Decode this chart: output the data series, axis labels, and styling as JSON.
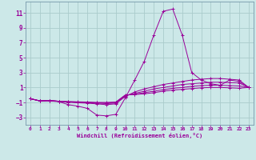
{
  "xlabel": "Windchill (Refroidissement éolien,°C)",
  "background_color": "#cce8e8",
  "grid_color": "#aacccc",
  "line_color": "#990099",
  "spine_color": "#7799aa",
  "xlim": [
    -0.5,
    23.5
  ],
  "ylim": [
    -4.0,
    12.5
  ],
  "xticks": [
    0,
    1,
    2,
    3,
    4,
    5,
    6,
    7,
    8,
    9,
    10,
    11,
    12,
    13,
    14,
    15,
    16,
    17,
    18,
    19,
    20,
    21,
    22,
    23
  ],
  "yticks": [
    -3,
    -1,
    1,
    3,
    5,
    7,
    9,
    11
  ],
  "series": [
    {
      "x": [
        0,
        1,
        2,
        3,
        4,
        5,
        6,
        7,
        8,
        9,
        10,
        11,
        12,
        13,
        14,
        15,
        16,
        17,
        18,
        19,
        20,
        21,
        22,
        23
      ],
      "y": [
        -0.5,
        -0.8,
        -0.8,
        -0.9,
        -1.3,
        -1.5,
        -1.8,
        -2.7,
        -2.8,
        -2.6,
        -0.4,
        2.0,
        4.5,
        8.0,
        11.2,
        11.5,
        8.0,
        3.0,
        2.0,
        1.5,
        1.3,
        2.0,
        1.8,
        1.0
      ]
    },
    {
      "x": [
        0,
        1,
        2,
        3,
        4,
        5,
        6,
        7,
        8,
        9,
        10,
        11,
        12,
        13,
        14,
        15,
        16,
        17,
        18,
        19,
        20,
        21,
        22,
        23
      ],
      "y": [
        -0.5,
        -0.8,
        -0.75,
        -0.85,
        -0.95,
        -1.05,
        -1.1,
        -1.2,
        -1.3,
        -1.2,
        -0.2,
        0.4,
        0.8,
        1.1,
        1.4,
        1.6,
        1.8,
        2.0,
        2.1,
        2.2,
        2.2,
        2.1,
        2.0,
        1.0
      ]
    },
    {
      "x": [
        0,
        1,
        2,
        3,
        4,
        5,
        6,
        7,
        8,
        9,
        10,
        11,
        12,
        13,
        14,
        15,
        16,
        17,
        18,
        19,
        20,
        21,
        22,
        23
      ],
      "y": [
        -0.5,
        -0.8,
        -0.75,
        -0.85,
        -0.95,
        -1.0,
        -1.05,
        -1.1,
        -1.15,
        -1.1,
        -0.1,
        0.2,
        0.5,
        0.8,
        1.0,
        1.2,
        1.4,
        1.5,
        1.6,
        1.7,
        1.7,
        1.65,
        1.6,
        1.0
      ]
    },
    {
      "x": [
        0,
        1,
        2,
        3,
        4,
        5,
        6,
        7,
        8,
        9,
        10,
        11,
        12,
        13,
        14,
        15,
        16,
        17,
        18,
        19,
        20,
        21,
        22,
        23
      ],
      "y": [
        -0.5,
        -0.8,
        -0.75,
        -0.85,
        -0.9,
        -0.95,
        -1.0,
        -1.05,
        -1.1,
        -1.0,
        -0.05,
        0.1,
        0.3,
        0.5,
        0.7,
        0.9,
        1.0,
        1.15,
        1.25,
        1.3,
        1.3,
        1.25,
        1.2,
        1.0
      ]
    },
    {
      "x": [
        0,
        1,
        2,
        3,
        4,
        5,
        6,
        7,
        8,
        9,
        10,
        11,
        12,
        13,
        14,
        15,
        16,
        17,
        18,
        19,
        20,
        21,
        22,
        23
      ],
      "y": [
        -0.5,
        -0.8,
        -0.75,
        -0.85,
        -0.9,
        -0.92,
        -0.95,
        -1.0,
        -1.0,
        -0.95,
        0.0,
        0.05,
        0.15,
        0.3,
        0.5,
        0.65,
        0.75,
        0.85,
        0.95,
        1.0,
        1.0,
        0.95,
        0.9,
        1.0
      ]
    }
  ]
}
